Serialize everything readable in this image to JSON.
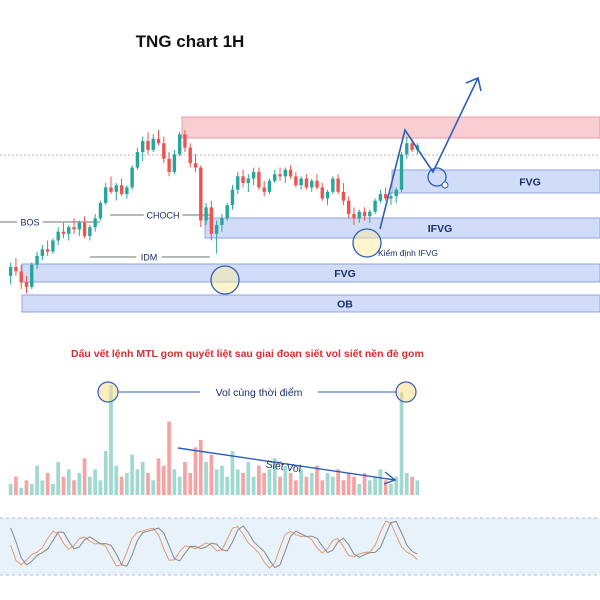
{
  "chart_data": {
    "type": "candlestick",
    "title": "TNG chart 1H",
    "annotation_red": "Dấu vết lệnh MTL gom quyết liệt sau giai đoạn siết vol siết nền đè gom",
    "zones": [
      {
        "label": "",
        "color": "#f7c6cc"
      },
      {
        "label": "FVG",
        "color": "#c9d6f7"
      },
      {
        "label": "IFVG",
        "color": "#c9d6f7"
      },
      {
        "label": "FVG",
        "color": "#c9d6f7"
      },
      {
        "label": "OB",
        "color": "#c9d6f7"
      }
    ],
    "levels": [
      {
        "label": "BOS"
      },
      {
        "label": "CHOCH"
      },
      {
        "label": "IDM"
      }
    ],
    "callouts": {
      "ifvg_test": "Kiểm định IFVG",
      "vol_same_time": "Vol cùng thời điểm",
      "vol_squeeze": "Siết Vol"
    },
    "candles": [
      [
        32.0,
        32.6,
        31.6,
        32.4
      ],
      [
        32.4,
        32.8,
        32.0,
        32.2
      ],
      [
        32.2,
        32.5,
        31.4,
        31.7
      ],
      [
        31.7,
        32.0,
        31.2,
        31.5
      ],
      [
        31.5,
        32.6,
        31.4,
        32.5
      ],
      [
        32.5,
        33.1,
        32.3,
        32.9
      ],
      [
        32.9,
        33.4,
        32.7,
        33.2
      ],
      [
        33.2,
        33.6,
        32.9,
        33.1
      ],
      [
        33.1,
        33.7,
        33.0,
        33.6
      ],
      [
        33.6,
        34.2,
        33.4,
        34.0
      ],
      [
        34.0,
        34.4,
        33.7,
        33.9
      ],
      [
        33.9,
        34.3,
        33.6,
        34.2
      ],
      [
        34.2,
        34.6,
        33.9,
        34.1
      ],
      [
        34.1,
        34.5,
        33.8,
        34.4
      ],
      [
        34.4,
        34.7,
        33.7,
        33.8
      ],
      [
        33.8,
        34.3,
        33.6,
        34.2
      ],
      [
        34.2,
        34.8,
        34.0,
        34.6
      ],
      [
        34.6,
        35.4,
        34.5,
        35.3
      ],
      [
        35.3,
        36.2,
        35.2,
        36.0
      ],
      [
        36.0,
        36.5,
        35.7,
        35.8
      ],
      [
        35.8,
        36.2,
        35.4,
        36.1
      ],
      [
        36.1,
        36.4,
        35.6,
        35.7
      ],
      [
        35.7,
        36.1,
        35.5,
        36.0
      ],
      [
        36.0,
        37.0,
        35.9,
        36.9
      ],
      [
        36.9,
        37.8,
        36.8,
        37.6
      ],
      [
        37.6,
        38.3,
        37.2,
        38.1
      ],
      [
        38.1,
        38.5,
        37.5,
        37.7
      ],
      [
        37.7,
        38.4,
        37.6,
        38.2
      ],
      [
        38.2,
        38.6,
        37.9,
        38.0
      ],
      [
        38.0,
        38.3,
        37.1,
        37.3
      ],
      [
        37.3,
        37.6,
        36.5,
        36.7
      ],
      [
        36.7,
        37.7,
        36.6,
        37.5
      ],
      [
        37.5,
        38.5,
        37.4,
        38.4
      ],
      [
        38.4,
        38.6,
        37.6,
        37.8
      ],
      [
        37.8,
        38.0,
        36.9,
        37.1
      ],
      [
        37.1,
        37.5,
        36.7,
        36.9
      ],
      [
        36.9,
        37.0,
        34.2,
        34.5
      ],
      [
        34.5,
        35.3,
        34.3,
        35.1
      ],
      [
        35.1,
        35.4,
        33.6,
        33.9
      ],
      [
        33.9,
        34.5,
        33.0,
        34.3
      ],
      [
        34.3,
        34.8,
        34.0,
        34.6
      ],
      [
        34.6,
        35.3,
        34.5,
        35.2
      ],
      [
        35.2,
        36.1,
        35.0,
        35.9
      ],
      [
        35.9,
        36.7,
        35.7,
        36.5
      ],
      [
        36.5,
        36.8,
        36.0,
        36.2
      ],
      [
        36.2,
        36.6,
        35.8,
        36.4
      ],
      [
        36.4,
        36.9,
        36.1,
        36.7
      ],
      [
        36.7,
        36.9,
        35.9,
        36.0
      ],
      [
        36.0,
        36.3,
        35.6,
        35.8
      ],
      [
        35.8,
        36.4,
        35.7,
        36.3
      ],
      [
        36.3,
        36.8,
        36.2,
        36.6
      ],
      [
        36.6,
        36.9,
        36.3,
        36.5
      ],
      [
        36.5,
        36.9,
        36.2,
        36.8
      ],
      [
        36.8,
        37.0,
        36.4,
        36.5
      ],
      [
        36.5,
        36.7,
        36.0,
        36.1
      ],
      [
        36.1,
        36.5,
        35.9,
        36.4
      ],
      [
        36.4,
        36.6,
        35.9,
        36.0
      ],
      [
        36.0,
        36.4,
        35.8,
        36.3
      ],
      [
        36.3,
        36.6,
        35.9,
        36.0
      ],
      [
        36.0,
        36.2,
        35.4,
        35.5
      ],
      [
        35.5,
        35.9,
        35.2,
        35.8
      ],
      [
        35.8,
        36.5,
        35.7,
        36.4
      ],
      [
        36.4,
        36.6,
        35.7,
        35.8
      ],
      [
        35.8,
        36.2,
        35.2,
        35.4
      ],
      [
        35.4,
        35.6,
        34.6,
        34.8
      ],
      [
        34.8,
        35.1,
        34.3,
        34.6
      ],
      [
        34.6,
        35.0,
        34.4,
        34.9
      ],
      [
        34.9,
        35.1,
        34.5,
        34.7
      ],
      [
        34.7,
        35.0,
        34.4,
        34.9
      ],
      [
        34.9,
        35.5,
        34.8,
        35.4
      ],
      [
        35.4,
        35.9,
        35.3,
        35.7
      ],
      [
        35.7,
        36.0,
        35.4,
        35.5
      ],
      [
        35.5,
        35.8,
        35.2,
        35.6
      ],
      [
        35.6,
        36.0,
        35.3,
        35.9
      ],
      [
        35.9,
        37.6,
        35.8,
        37.5
      ],
      [
        37.5,
        38.3,
        37.3,
        38.0
      ],
      [
        38.0,
        38.2,
        37.6,
        37.7
      ],
      [
        37.7,
        38.0,
        37.5,
        37.9
      ]
    ],
    "volume": [
      3,
      5,
      2,
      4,
      3,
      8,
      4,
      6,
      3,
      9,
      5,
      7,
      4,
      6,
      10,
      5,
      7,
      4,
      12,
      30,
      8,
      5,
      6,
      11,
      7,
      9,
      6,
      4,
      10,
      8,
      20,
      7,
      5,
      9,
      6,
      13,
      15,
      9,
      11,
      7,
      8,
      5,
      12,
      7,
      6,
      9,
      5,
      8,
      6,
      7,
      10,
      5,
      8,
      6,
      4,
      7,
      5,
      6,
      8,
      4,
      6,
      5,
      7,
      4,
      6,
      5,
      3,
      6,
      4,
      5,
      7,
      4,
      3,
      5,
      28,
      6,
      5,
      4
    ],
    "volume_up": [
      1,
      0,
      1,
      0,
      1,
      1,
      1,
      0,
      1,
      1,
      0,
      1,
      0,
      1,
      0,
      1,
      1,
      1,
      1,
      1,
      1,
      0,
      1,
      1,
      1,
      1,
      0,
      1,
      0,
      0,
      0,
      1,
      1,
      0,
      0,
      0,
      0,
      1,
      0,
      1,
      1,
      1,
      1,
      1,
      0,
      1,
      1,
      0,
      0,
      1,
      1,
      0,
      1,
      0,
      0,
      1,
      0,
      1,
      0,
      0,
      1,
      1,
      0,
      0,
      0,
      0,
      1,
      0,
      1,
      1,
      1,
      0,
      1,
      1,
      1,
      1,
      0,
      1
    ],
    "colors": {
      "up": "#26a69a",
      "down": "#ef5350",
      "vol_up": "#9fd9cf",
      "vol_down": "#f5a3a3",
      "zone_blue": "#c9d6f7",
      "zone_red": "#f7c6cc",
      "arrow": "#2e5fb8",
      "annotation": "#d32f2f"
    }
  }
}
